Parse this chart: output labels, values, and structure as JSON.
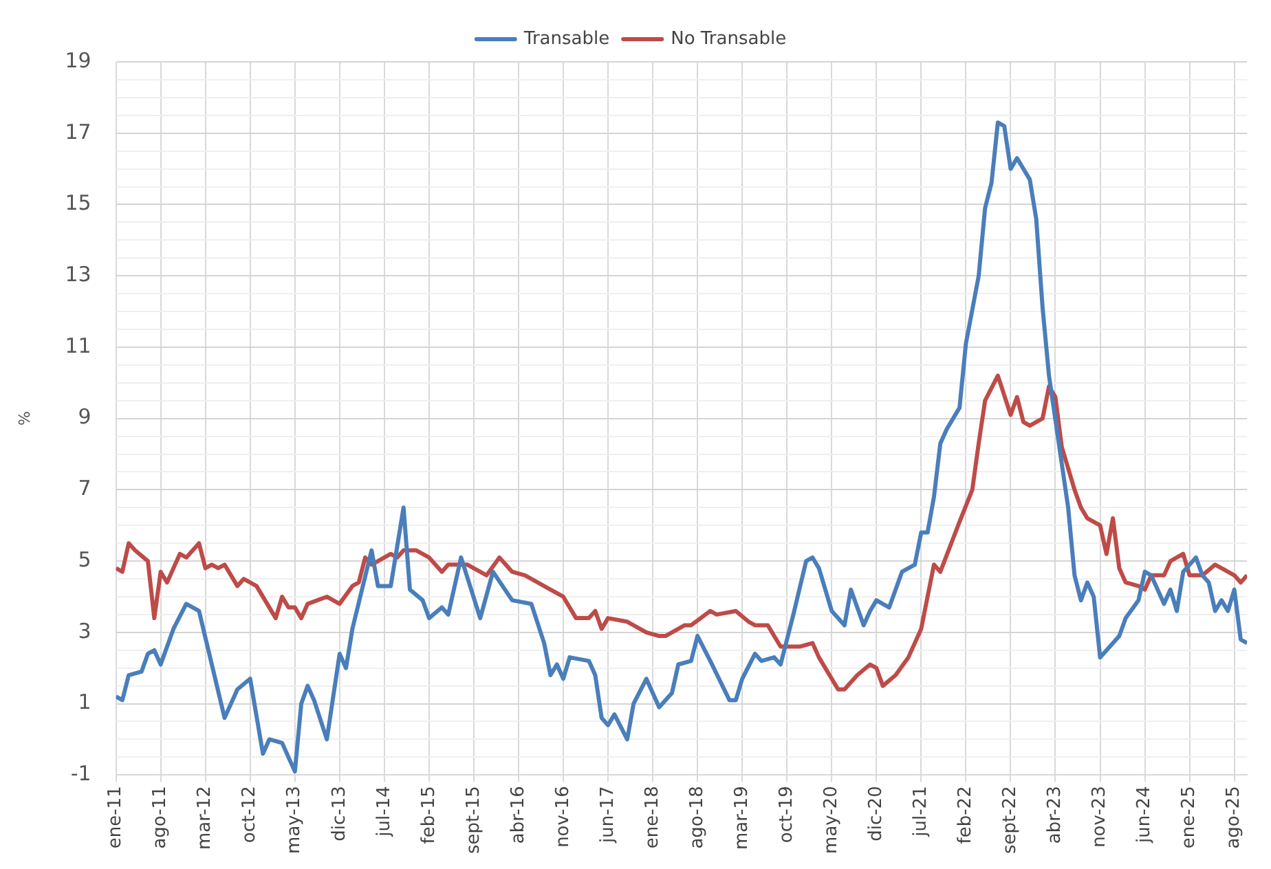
{
  "chart_data": {
    "type": "line",
    "ylabel": "%",
    "legend": "top",
    "grid": true,
    "marker": "none",
    "line_style": "solid",
    "xlim": [
      "2011-01",
      "2025-10"
    ],
    "xticks": [
      {
        "value": "2011-01",
        "label": "ene-11"
      },
      {
        "value": "2011-08",
        "label": "ago-11"
      },
      {
        "value": "2012-03",
        "label": "mar-12"
      },
      {
        "value": "2012-10",
        "label": "oct-12"
      },
      {
        "value": "2013-05",
        "label": "may-13"
      },
      {
        "value": "2013-12",
        "label": "dic-13"
      },
      {
        "value": "2014-07",
        "label": "jul-14"
      },
      {
        "value": "2015-02",
        "label": "feb-15"
      },
      {
        "value": "2015-09",
        "label": "sept-15"
      },
      {
        "value": "2016-04",
        "label": "abr-16"
      },
      {
        "value": "2016-11",
        "label": "nov-16"
      },
      {
        "value": "2017-06",
        "label": "jun-17"
      },
      {
        "value": "2018-01",
        "label": "ene-18"
      },
      {
        "value": "2018-08",
        "label": "ago-18"
      },
      {
        "value": "2019-03",
        "label": "mar-19"
      },
      {
        "value": "2019-10",
        "label": "oct-19"
      },
      {
        "value": "2020-05",
        "label": "may-20"
      },
      {
        "value": "2020-12",
        "label": "dic-20"
      },
      {
        "value": "2021-07",
        "label": "jul-21"
      },
      {
        "value": "2022-02",
        "label": "feb-22"
      },
      {
        "value": "2022-09",
        "label": "sept-22"
      },
      {
        "value": "2023-04",
        "label": "abr-23"
      },
      {
        "value": "2023-11",
        "label": "nov-23"
      },
      {
        "value": "2024-06",
        "label": "jun-24"
      },
      {
        "value": "2025-01",
        "label": "ene-25"
      },
      {
        "value": "2025-08",
        "label": "ago-25"
      }
    ],
    "ylim": [
      -1,
      19
    ],
    "yticks": [
      -1,
      {
        "value": -0.5,
        "label": null
      },
      {
        "value": 0,
        "label": null
      },
      {
        "value": 0.5,
        "label": null
      },
      1,
      {
        "value": 1.5,
        "label": null
      },
      {
        "value": 2,
        "label": null
      },
      {
        "value": 2.5,
        "label": null
      },
      3,
      {
        "value": 3.5,
        "label": null
      },
      {
        "value": 4,
        "label": null
      },
      {
        "value": 4.5,
        "label": null
      },
      5,
      {
        "value": 5.5,
        "label": null
      },
      {
        "value": 6,
        "label": null
      },
      {
        "value": 6.5,
        "label": null
      },
      7,
      {
        "value": 7.5,
        "label": null
      },
      {
        "value": 8,
        "label": null
      },
      {
        "value": 8.5,
        "label": null
      },
      9,
      {
        "value": 9.5,
        "label": null
      },
      {
        "value": 10,
        "label": null
      },
      {
        "value": 10.5,
        "label": null
      },
      11,
      {
        "value": 11.5,
        "label": null
      },
      {
        "value": 12,
        "label": null
      },
      {
        "value": 12.5,
        "label": null
      },
      13,
      {
        "value": 13.5,
        "label": null
      },
      {
        "value": 14,
        "label": null
      },
      {
        "value": 14.5,
        "label": null
      },
      15,
      {
        "value": 15.5,
        "label": null
      },
      {
        "value": 16,
        "label": null
      },
      {
        "value": 16.5,
        "label": null
      },
      17,
      {
        "value": 17.5,
        "label": null
      },
      {
        "value": 18,
        "label": null
      },
      {
        "value": 18.5,
        "label": null
      },
      19
    ],
    "series": [
      {
        "name": "Transable",
        "color": "#4a7ebb",
        "x": [
          "2011-01",
          "2011-02",
          "2011-03",
          "2011-05",
          "2011-06",
          "2011-07",
          "2011-08",
          "2011-10",
          "2011-12",
          "2012-02",
          "2012-04",
          "2012-06",
          "2012-08",
          "2012-10",
          "2012-12",
          "2013-01",
          "2013-03",
          "2013-05",
          "2013-06",
          "2013-07",
          "2013-08",
          "2013-10",
          "2013-12",
          "2014-01",
          "2014-02",
          "2014-05",
          "2014-06",
          "2014-08",
          "2014-10",
          "2014-11",
          "2015-01",
          "2015-02",
          "2015-04",
          "2015-05",
          "2015-07",
          "2015-10",
          "2015-12",
          "2016-03",
          "2016-06",
          "2016-08",
          "2016-09",
          "2016-10",
          "2016-11",
          "2016-12",
          "2017-03",
          "2017-04",
          "2017-05",
          "2017-06",
          "2017-07",
          "2017-09",
          "2017-10",
          "2017-12",
          "2018-02",
          "2018-04",
          "2018-05",
          "2018-07",
          "2018-08",
          "2018-10",
          "2019-01",
          "2019-02",
          "2019-03",
          "2019-05",
          "2019-06",
          "2019-08",
          "2019-09",
          "2019-10",
          "2019-11",
          "2020-01",
          "2020-02",
          "2020-03",
          "2020-05",
          "2020-06",
          "2020-07",
          "2020-08",
          "2020-10",
          "2020-11",
          "2020-12",
          "2021-02",
          "2021-04",
          "2021-06",
          "2021-07",
          "2021-08",
          "2021-09",
          "2021-10",
          "2021-11",
          "2022-01",
          "2022-02",
          "2022-04",
          "2022-05",
          "2022-06",
          "2022-07",
          "2022-08",
          "2022-09",
          "2022-10",
          "2022-12",
          "2023-01",
          "2023-02",
          "2023-03",
          "2023-06",
          "2023-07",
          "2023-08",
          "2023-09",
          "2023-10",
          "2023-11",
          "2024-01",
          "2024-02",
          "2024-03",
          "2024-05",
          "2024-06",
          "2024-07",
          "2024-09",
          "2024-10",
          "2024-11",
          "2024-12",
          "2025-01",
          "2025-02",
          "2025-03",
          "2025-04",
          "2025-05",
          "2025-06",
          "2025-07",
          "2025-08",
          "2025-09",
          "2025-10"
        ],
        "values": [
          1.2,
          1.1,
          1.8,
          1.9,
          2.4,
          2.5,
          2.1,
          3.1,
          3.8,
          3.6,
          2.1,
          0.6,
          1.4,
          1.7,
          -0.4,
          0.0,
          -0.1,
          -0.9,
          1.0,
          1.5,
          1.1,
          0.0,
          2.4,
          2.0,
          3.1,
          5.3,
          4.3,
          4.3,
          6.5,
          4.2,
          3.9,
          3.4,
          3.7,
          3.5,
          5.1,
          3.4,
          4.7,
          3.9,
          3.8,
          2.7,
          1.8,
          2.1,
          1.7,
          2.3,
          2.2,
          1.8,
          0.6,
          0.4,
          0.7,
          0.0,
          1.0,
          1.7,
          0.9,
          1.3,
          2.1,
          2.2,
          2.9,
          2.2,
          1.1,
          1.1,
          1.7,
          2.4,
          2.2,
          2.3,
          2.1,
          2.8,
          3.5,
          5.0,
          5.1,
          4.8,
          3.6,
          3.4,
          3.2,
          4.2,
          3.2,
          3.6,
          3.9,
          3.7,
          4.7,
          4.9,
          5.8,
          5.8,
          6.8,
          8.3,
          8.7,
          9.3,
          11.1,
          13.0,
          14.9,
          15.6,
          17.3,
          17.2,
          16.0,
          16.3,
          15.7,
          14.6,
          12.1,
          10.2,
          6.5,
          4.6,
          3.9,
          4.4,
          4.0,
          2.3,
          2.7,
          2.9,
          3.4,
          3.9,
          4.7,
          4.6,
          3.8,
          4.2,
          3.6,
          4.7,
          4.9,
          5.1,
          4.6,
          4.4,
          3.6,
          3.9,
          3.6,
          4.2,
          2.8,
          2.7
        ]
      },
      {
        "name": "No Transable",
        "color": "#be4b48",
        "x": [
          "2011-01",
          "2011-02",
          "2011-03",
          "2011-04",
          "2011-06",
          "2011-07",
          "2011-08",
          "2011-09",
          "2011-11",
          "2011-12",
          "2012-02",
          "2012-03",
          "2012-04",
          "2012-05",
          "2012-06",
          "2012-08",
          "2012-09",
          "2012-11",
          "2013-02",
          "2013-03",
          "2013-04",
          "2013-05",
          "2013-06",
          "2013-07",
          "2013-10",
          "2013-12",
          "2014-02",
          "2014-03",
          "2014-04",
          "2014-05",
          "2014-08",
          "2014-09",
          "2014-10",
          "2014-12",
          "2015-02",
          "2015-04",
          "2015-05",
          "2015-08",
          "2015-11",
          "2016-01",
          "2016-02",
          "2016-03",
          "2016-05",
          "2016-09",
          "2016-11",
          "2017-01",
          "2017-03",
          "2017-04",
          "2017-05",
          "2017-06",
          "2017-09",
          "2017-12",
          "2018-02",
          "2018-03",
          "2018-06",
          "2018-07",
          "2018-10",
          "2018-11",
          "2019-02",
          "2019-04",
          "2019-05",
          "2019-07",
          "2019-09",
          "2019-12",
          "2020-02",
          "2020-03",
          "2020-06",
          "2020-07",
          "2020-09",
          "2020-11",
          "2020-12",
          "2021-01",
          "2021-03",
          "2021-05",
          "2021-07",
          "2021-08",
          "2021-09",
          "2021-10",
          "2022-01",
          "2022-03",
          "2022-04",
          "2022-05",
          "2022-07",
          "2022-09",
          "2022-10",
          "2022-11",
          "2022-12",
          "2023-02",
          "2023-03",
          "2023-04",
          "2023-05",
          "2023-07",
          "2023-08",
          "2023-09",
          "2023-11",
          "2023-12",
          "2024-01",
          "2024-02",
          "2024-03",
          "2024-05",
          "2024-06",
          "2024-07",
          "2024-09",
          "2024-10",
          "2024-11",
          "2024-12",
          "2025-01",
          "2025-03",
          "2025-05",
          "2025-07",
          "2025-08",
          "2025-09",
          "2025-10"
        ],
        "values": [
          4.8,
          4.7,
          5.5,
          5.3,
          5.0,
          3.4,
          4.7,
          4.4,
          5.2,
          5.1,
          5.5,
          4.8,
          4.9,
          4.8,
          4.9,
          4.3,
          4.5,
          4.3,
          3.4,
          4.0,
          3.7,
          3.7,
          3.4,
          3.8,
          4.0,
          3.8,
          4.3,
          4.4,
          5.1,
          4.9,
          5.2,
          5.1,
          5.3,
          5.3,
          5.1,
          4.7,
          4.9,
          4.9,
          4.6,
          5.1,
          4.9,
          4.7,
          4.6,
          4.2,
          4.0,
          3.4,
          3.4,
          3.6,
          3.1,
          3.4,
          3.3,
          3.0,
          2.9,
          2.9,
          3.2,
          3.2,
          3.6,
          3.5,
          3.6,
          3.3,
          3.2,
          3.2,
          2.6,
          2.6,
          2.7,
          2.3,
          1.4,
          1.4,
          1.8,
          2.1,
          2.0,
          1.5,
          1.8,
          2.3,
          3.1,
          4.0,
          4.9,
          4.7,
          6.1,
          7.0,
          8.3,
          9.5,
          10.2,
          9.1,
          9.6,
          8.9,
          8.8,
          9.0,
          9.9,
          9.6,
          8.2,
          7.0,
          6.5,
          6.2,
          6.0,
          5.2,
          6.2,
          4.8,
          4.4,
          4.3,
          4.2,
          4.6,
          4.6,
          5.0,
          5.1,
          5.2,
          4.6,
          4.6,
          4.9,
          4.7,
          4.6,
          4.4,
          4.6
        ]
      }
    ]
  }
}
